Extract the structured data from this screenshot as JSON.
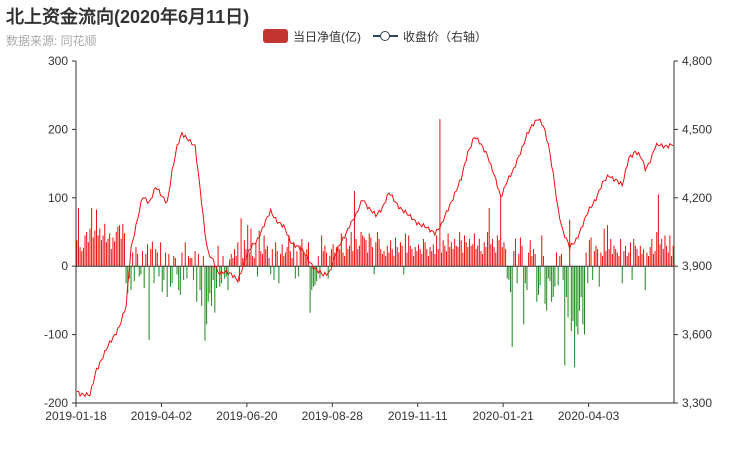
{
  "header": {
    "title": "北上资金流向(2020年6月11日)",
    "subtitle": "数据来源: 同花顺"
  },
  "legend": {
    "net_label": "当日净值(亿)",
    "close_label": "收盘价（右轴）"
  },
  "colors": {
    "positive": "#ee1111",
    "negative": "#208a20",
    "line": "#ee1111",
    "legend_bar": "#c23531",
    "legend_line": "#2f4554",
    "axis": "#333333"
  },
  "chart_data": {
    "type": "bar+line",
    "x_tick_labels": [
      "2019-01-18",
      "2019-04-02",
      "2019-06-20",
      "2019-08-28",
      "2019-11-11",
      "2020-01-21",
      "2020-04-03"
    ],
    "left_axis": {
      "ylim": [
        -200,
        300
      ],
      "ticks": [
        "-200",
        "-100",
        "0",
        "100",
        "200",
        "300"
      ]
    },
    "right_axis": {
      "ylim": [
        3300,
        4800
      ],
      "ticks": [
        "3,300",
        "3,600",
        "3,900",
        "4,200",
        "4,500",
        "4,800"
      ]
    },
    "close_series": {
      "name": "收盘价（右轴）",
      "keypoints": [
        [
          0,
          3350
        ],
        [
          8,
          3330
        ],
        [
          12,
          3450
        ],
        [
          20,
          3560
        ],
        [
          26,
          3640
        ],
        [
          30,
          3720
        ],
        [
          33,
          3980
        ],
        [
          36,
          4080
        ],
        [
          40,
          4200
        ],
        [
          44,
          4180
        ],
        [
          48,
          4250
        ],
        [
          52,
          4200
        ],
        [
          55,
          4180
        ],
        [
          58,
          4320
        ],
        [
          61,
          4420
        ],
        [
          64,
          4480
        ],
        [
          68,
          4460
        ],
        [
          72,
          4420
        ],
        [
          74,
          4300
        ],
        [
          76,
          4180
        ],
        [
          78,
          4050
        ],
        [
          80,
          3960
        ],
        [
          83,
          3920
        ],
        [
          86,
          3870
        ],
        [
          90,
          3880
        ],
        [
          94,
          3860
        ],
        [
          98,
          3840
        ],
        [
          102,
          3920
        ],
        [
          106,
          3980
        ],
        [
          110,
          4020
        ],
        [
          114,
          4080
        ],
        [
          118,
          4140
        ],
        [
          122,
          4100
        ],
        [
          126,
          4070
        ],
        [
          130,
          4010
        ],
        [
          134,
          3990
        ],
        [
          138,
          3960
        ],
        [
          142,
          3920
        ],
        [
          146,
          3880
        ],
        [
          150,
          3860
        ],
        [
          154,
          3880
        ],
        [
          158,
          3960
        ],
        [
          162,
          4020
        ],
        [
          166,
          4080
        ],
        [
          170,
          4120
        ],
        [
          174,
          4200
        ],
        [
          178,
          4150
        ],
        [
          182,
          4120
        ],
        [
          186,
          4160
        ],
        [
          190,
          4220
        ],
        [
          194,
          4180
        ],
        [
          198,
          4150
        ],
        [
          202,
          4120
        ],
        [
          206,
          4100
        ],
        [
          210,
          4080
        ],
        [
          214,
          4060
        ],
        [
          218,
          4050
        ],
        [
          222,
          4080
        ],
        [
          226,
          4150
        ],
        [
          230,
          4220
        ],
        [
          234,
          4280
        ],
        [
          238,
          4400
        ],
        [
          242,
          4470
        ],
        [
          246,
          4430
        ],
        [
          250,
          4390
        ],
        [
          254,
          4300
        ],
        [
          258,
          4200
        ],
        [
          262,
          4280
        ],
        [
          266,
          4320
        ],
        [
          270,
          4400
        ],
        [
          274,
          4480
        ],
        [
          278,
          4520
        ],
        [
          281,
          4550
        ],
        [
          284,
          4520
        ],
        [
          287,
          4430
        ],
        [
          290,
          4300
        ],
        [
          293,
          4150
        ],
        [
          296,
          4050
        ],
        [
          300,
          3980
        ],
        [
          304,
          4020
        ],
        [
          308,
          4080
        ],
        [
          312,
          4150
        ],
        [
          316,
          4200
        ],
        [
          320,
          4260
        ],
        [
          324,
          4300
        ],
        [
          328,
          4280
        ],
        [
          332,
          4250
        ],
        [
          336,
          4380
        ],
        [
          340,
          4400
        ],
        [
          344,
          4370
        ],
        [
          346,
          4330
        ],
        [
          348,
          4350
        ],
        [
          350,
          4380
        ],
        [
          352,
          4420
        ],
        [
          354,
          4430
        ],
        [
          356,
          4430
        ]
      ]
    },
    "net_flow_series": {
      "name": "当日净值(亿)",
      "values": [
        38,
        85,
        28,
        22,
        27,
        45,
        50,
        35,
        55,
        85,
        42,
        52,
        83,
        45,
        55,
        38,
        45,
        62,
        35,
        40,
        48,
        25,
        42,
        36,
        50,
        58,
        60,
        40,
        62,
        48,
        -25,
        -40,
        -18,
        -35,
        20,
        -22,
        28,
        18,
        -15,
        -12,
        22,
        -32,
        18,
        32,
        -108,
        25,
        36,
        -25,
        25,
        20,
        -15,
        35,
        -38,
        -20,
        20,
        -45,
        18,
        -30,
        -25,
        15,
        12,
        -12,
        -35,
        -42,
        20,
        -20,
        35,
        -18,
        15,
        12,
        12,
        -20,
        22,
        -52,
        18,
        -35,
        -58,
        15,
        -109,
        -85,
        -52,
        -40,
        -58,
        -20,
        -68,
        -32,
        30,
        -30,
        -25,
        15,
        -18,
        -15,
        -35,
        10,
        18,
        12,
        25,
        15,
        35,
        -22,
        70,
        12,
        38,
        25,
        60,
        20,
        55,
        15,
        12,
        35,
        -15,
        52,
        22,
        18,
        45,
        25,
        30,
        12,
        -12,
        25,
        -20,
        35,
        22,
        -25,
        18,
        32,
        15,
        20,
        28,
        45,
        22,
        12,
        35,
        -18,
        22,
        -15,
        30,
        40,
        20,
        15,
        25,
        35,
        -68,
        -35,
        -30,
        -28,
        -22,
        15,
        -18,
        45,
        22,
        30,
        20,
        -18,
        15,
        25,
        32,
        20,
        28,
        28,
        25,
        48,
        20,
        15,
        42,
        25,
        30,
        50,
        22,
        110,
        40,
        25,
        30,
        50,
        45,
        42,
        38,
        20,
        48,
        42,
        28,
        -12,
        35,
        50,
        40,
        25,
        18,
        22,
        15,
        30,
        20,
        38,
        25,
        15,
        42,
        28,
        20,
        35,
        30,
        -12,
        48,
        20,
        45,
        30,
        25,
        15,
        28,
        22,
        32,
        25,
        18,
        40,
        35,
        25,
        15,
        28,
        22,
        32,
        18,
        45,
        25,
        215,
        20,
        38,
        30,
        22,
        48,
        28,
        35,
        25,
        40,
        30,
        28,
        50,
        38,
        20,
        45,
        35,
        28,
        40,
        30,
        32,
        48,
        25,
        30,
        40,
        22,
        18,
        35,
        28,
        50,
        85,
        32,
        40,
        28,
        20,
        45,
        38,
        102,
        28,
        35,
        25,
        -18,
        -20,
        -38,
        -118,
        22,
        40,
        -25,
        18,
        42,
        30,
        -85,
        -25,
        -35,
        20,
        38,
        15,
        25,
        18,
        -52,
        -42,
        -28,
        45,
        15,
        -55,
        -65,
        -18,
        -22,
        -52,
        -45,
        -30,
        20,
        -28,
        15,
        18,
        -20,
        -145,
        -45,
        -75,
        68,
        -95,
        -80,
        -148,
        -88,
        -100,
        -65,
        -45,
        -85,
        -100,
        20,
        -25,
        38,
        42,
        -20,
        22,
        30,
        25,
        -30,
        20,
        15,
        55,
        22,
        60,
        25,
        40,
        18,
        30,
        25,
        20,
        15,
        40,
        -25,
        22,
        30,
        15,
        20,
        35,
        -20,
        40,
        30,
        25,
        15,
        30,
        18,
        25,
        -35,
        20,
        15,
        28,
        40,
        18,
        22,
        50,
        105,
        32,
        40,
        25,
        45,
        30,
        20,
        45,
        15,
        30
      ]
    }
  }
}
